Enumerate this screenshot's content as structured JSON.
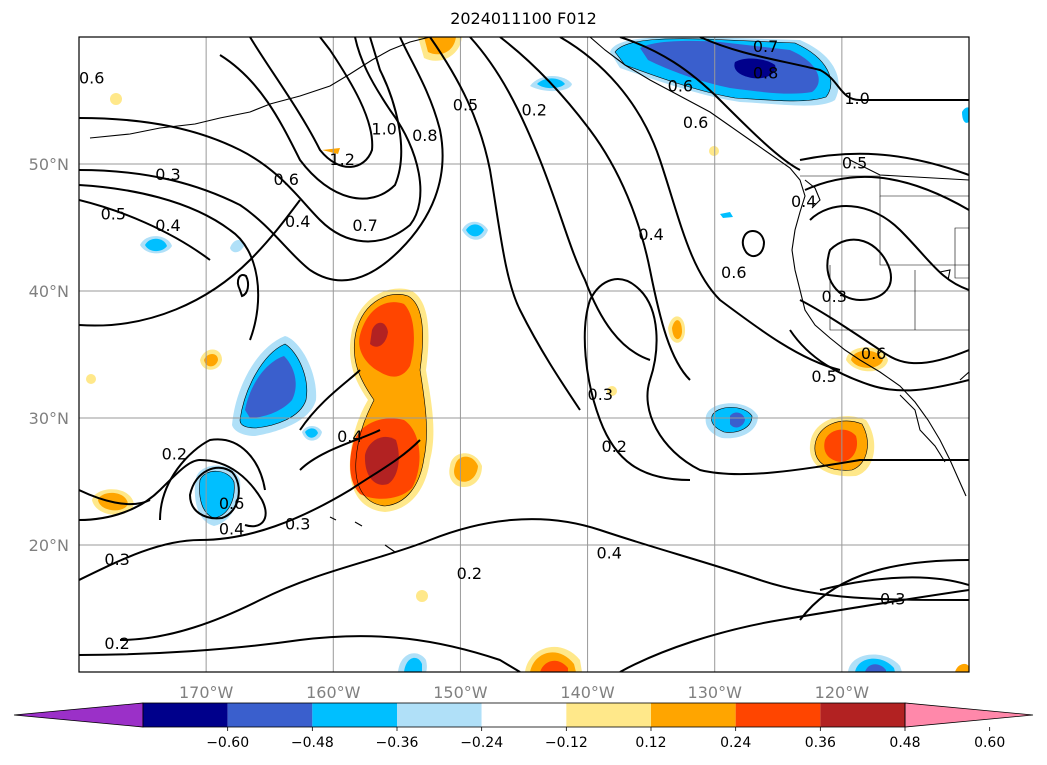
{
  "title": "2024011100 F012",
  "map": {
    "lon_range": [
      -180,
      -110
    ],
    "lat_range": [
      10,
      60
    ],
    "gridlines": true,
    "lon_ticks": [
      {
        "lon": -170,
        "label": "170°W"
      },
      {
        "lon": -160,
        "label": "160°W"
      },
      {
        "lon": -150,
        "label": "150°W"
      },
      {
        "lon": -140,
        "label": "140°W"
      },
      {
        "lon": -130,
        "label": "130°W"
      },
      {
        "lon": -120,
        "label": "120°W"
      }
    ],
    "lat_ticks": [
      {
        "lat": 50,
        "label": "50°N"
      },
      {
        "lat": 40,
        "label": "40°N"
      },
      {
        "lat": 30,
        "label": "30°N"
      },
      {
        "lat": 20,
        "label": "20°N"
      }
    ]
  },
  "colorbar": {
    "extend": "both",
    "ticks": [
      "−0.60",
      "−0.48",
      "−0.36",
      "−0.24",
      "−0.12",
      "0.12",
      "0.24",
      "0.36",
      "0.48",
      "0.60"
    ],
    "colors": [
      "#9b30c8",
      "#00008b",
      "#3a5fcd",
      "#00bfff",
      "#b0e0f8",
      "#ffffff",
      "#ffe88a",
      "#ffa500",
      "#ff4500",
      "#b22222",
      "#ff88aa"
    ]
  },
  "contour_labels": [
    {
      "text": "0.6",
      "lon": -179,
      "lat": 56.8
    },
    {
      "text": "0.3",
      "lon": -173,
      "lat": 49.2
    },
    {
      "text": "0.5",
      "lon": -177.3,
      "lat": 46.1
    },
    {
      "text": "0.4",
      "lon": -173,
      "lat": 45.2
    },
    {
      "text": "0.6",
      "lon": -163.7,
      "lat": 48.8
    },
    {
      "text": "0.4",
      "lon": -162.8,
      "lat": 45.5
    },
    {
      "text": "1.2",
      "lon": -159.3,
      "lat": 50.4
    },
    {
      "text": "1.0",
      "lon": -156,
      "lat": 52.8
    },
    {
      "text": "0.7",
      "lon": -157.5,
      "lat": 45.2
    },
    {
      "text": "0.8",
      "lon": -152.8,
      "lat": 52.3
    },
    {
      "text": "0.5",
      "lon": -149.6,
      "lat": 54.7
    },
    {
      "text": "0.2",
      "lon": -144.2,
      "lat": 54.3
    },
    {
      "text": "0.6",
      "lon": -132.7,
      "lat": 56.2
    },
    {
      "text": "0.6",
      "lon": -131.5,
      "lat": 53.3
    },
    {
      "text": "0.7",
      "lon": -126,
      "lat": 59.3
    },
    {
      "text": "0.8",
      "lon": -126,
      "lat": 57.2
    },
    {
      "text": "1.0",
      "lon": -118.8,
      "lat": 55.2
    },
    {
      "text": "0.5",
      "lon": -119,
      "lat": 50.1
    },
    {
      "text": "0.4",
      "lon": -123,
      "lat": 47.1
    },
    {
      "text": "0.4",
      "lon": -135,
      "lat": 44.5
    },
    {
      "text": "0.6",
      "lon": -128.5,
      "lat": 41.5
    },
    {
      "text": "0.3",
      "lon": -120.6,
      "lat": 39.6
    },
    {
      "text": "0.6",
      "lon": -117.5,
      "lat": 35.1
    },
    {
      "text": "0.5",
      "lon": -121.4,
      "lat": 33.3
    },
    {
      "text": "0.3",
      "lon": -139,
      "lat": 31.9
    },
    {
      "text": "0.2",
      "lon": -137.9,
      "lat": 27.8
    },
    {
      "text": "0.4",
      "lon": -158.7,
      "lat": 28.6
    },
    {
      "text": "0.2",
      "lon": -172.5,
      "lat": 27.2
    },
    {
      "text": "0.6",
      "lon": -168,
      "lat": 23.3
    },
    {
      "text": "0.4",
      "lon": -168,
      "lat": 21.3
    },
    {
      "text": "0.3",
      "lon": -162.8,
      "lat": 21.7
    },
    {
      "text": "0.3",
      "lon": -177,
      "lat": 18.9
    },
    {
      "text": "0.2",
      "lon": -149.3,
      "lat": 17.8
    },
    {
      "text": "0.4",
      "lon": -138.3,
      "lat": 19.4
    },
    {
      "text": "0.3",
      "lon": -116,
      "lat": 15.8
    },
    {
      "text": "0.2",
      "lon": -177,
      "lat": 12.3
    }
  ]
}
